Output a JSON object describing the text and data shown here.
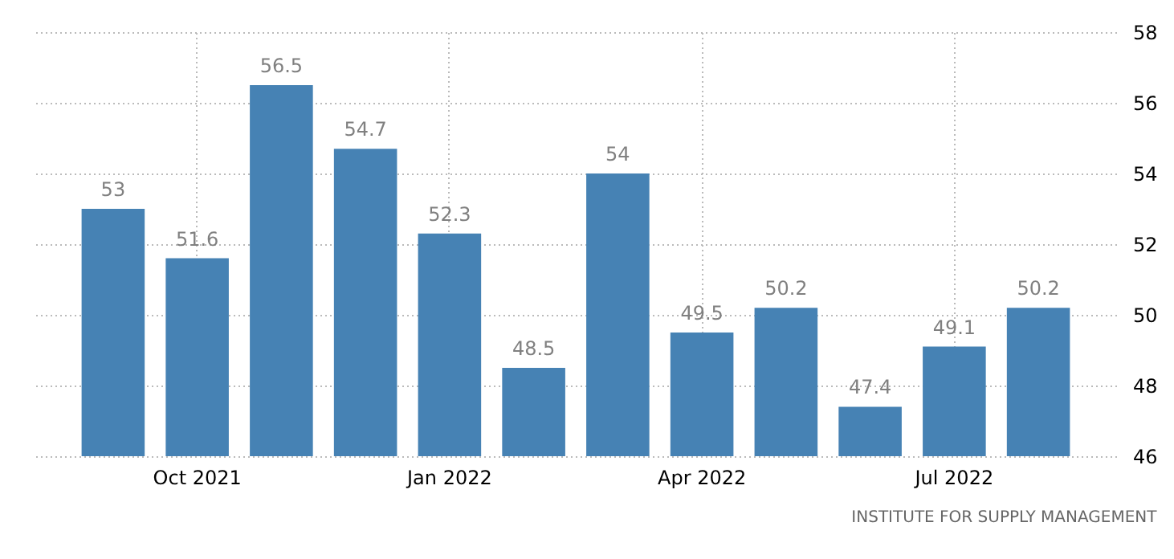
{
  "chart_data": {
    "type": "bar",
    "categories": [
      null,
      "Oct 2021",
      null,
      null,
      "Jan 2022",
      null,
      null,
      "Apr 2022",
      null,
      null,
      "Jul 2022",
      null
    ],
    "values": [
      53,
      51.6,
      56.5,
      54.7,
      52.3,
      48.5,
      54,
      49.5,
      50.2,
      47.4,
      49.1,
      50.2
    ],
    "color": "#4682b4",
    "ylim": [
      46,
      58
    ],
    "yticks": [
      46,
      48,
      50,
      52,
      54,
      56,
      58
    ],
    "grid": true,
    "data_labels": true,
    "annotations": [
      "INSTITUTE FOR SUPPLY MANAGEMENT"
    ]
  }
}
